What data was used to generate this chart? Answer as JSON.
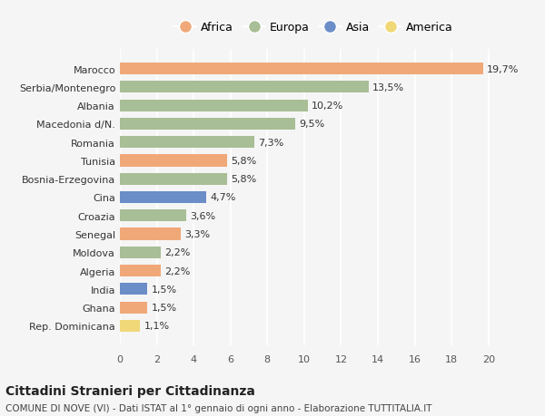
{
  "countries": [
    "Rep. Dominicana",
    "Ghana",
    "India",
    "Algeria",
    "Moldova",
    "Senegal",
    "Croazia",
    "Cina",
    "Bosnia-Erzegovina",
    "Tunisia",
    "Romania",
    "Macedonia d/N.",
    "Albania",
    "Serbia/Montenegro",
    "Marocco"
  ],
  "values": [
    1.1,
    1.5,
    1.5,
    2.2,
    2.2,
    3.3,
    3.6,
    4.7,
    5.8,
    5.8,
    7.3,
    9.5,
    10.2,
    13.5,
    19.7
  ],
  "labels": [
    "1,1%",
    "1,5%",
    "1,5%",
    "2,2%",
    "2,2%",
    "3,3%",
    "3,6%",
    "4,7%",
    "5,8%",
    "5,8%",
    "7,3%",
    "9,5%",
    "10,2%",
    "13,5%",
    "19,7%"
  ],
  "continents": [
    "America",
    "Africa",
    "Asia",
    "Africa",
    "Europa",
    "Africa",
    "Europa",
    "Asia",
    "Europa",
    "Africa",
    "Europa",
    "Europa",
    "Europa",
    "Europa",
    "Africa"
  ],
  "colors": {
    "Africa": "#F0A878",
    "Europa": "#A8BE96",
    "Asia": "#6B8DC8",
    "America": "#F0D878"
  },
  "legend_order": [
    "Africa",
    "Europa",
    "Asia",
    "America"
  ],
  "title1": "Cittadini Stranieri per Cittadinanza",
  "title2": "COMUNE DI NOVE (VI) - Dati ISTAT al 1° gennaio di ogni anno - Elaborazione TUTTITALIA.IT",
  "xlim": [
    0,
    21
  ],
  "xticks": [
    0,
    2,
    4,
    6,
    8,
    10,
    12,
    14,
    16,
    18,
    20
  ],
  "background_color": "#f5f5f5",
  "bar_height": 0.65
}
